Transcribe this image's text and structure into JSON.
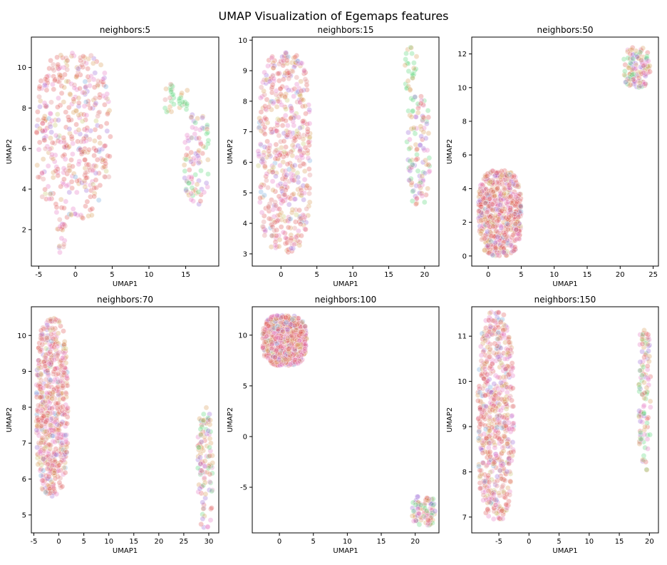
{
  "figure": {
    "title": "UMAP Visualization of Egemaps features"
  },
  "palette": [
    "#e05a5a",
    "#d9a05b",
    "#e67ac3",
    "#e08a8a",
    "#9b6ad6",
    "#5ad67a",
    "#6fa8dc",
    "#c8c86e"
  ],
  "chart_data": [
    {
      "type": "scatter",
      "title": "neighbors:5",
      "xlabel": "UMAP1",
      "ylabel": "UMAP2",
      "xlim": [
        -6,
        19.5
      ],
      "ylim": [
        0.2,
        11.5
      ],
      "xticks": [
        -5,
        0,
        5,
        10,
        15
      ],
      "yticks": [
        2,
        4,
        6,
        8,
        10
      ],
      "clusters": [
        {
          "x": [
            -5.3,
            4.8
          ],
          "y": [
            2.5,
            10.8
          ],
          "n": 420,
          "mix": "main"
        },
        {
          "x": [
            -2.5,
            -1.3
          ],
          "y": [
            0.7,
            2.6
          ],
          "n": 20,
          "mix": "main"
        },
        {
          "x": [
            11.8,
            15.6
          ],
          "y": [
            7.6,
            9.2
          ],
          "n": 35,
          "mix": "greenish"
        },
        {
          "x": [
            14.8,
            18.2
          ],
          "y": [
            3.2,
            7.8
          ],
          "n": 90,
          "mix": "edge"
        }
      ]
    },
    {
      "type": "scatter",
      "title": "neighbors:15",
      "xlabel": "UMAP1",
      "ylabel": "UMAP2",
      "xlim": [
        -4,
        22
      ],
      "ylim": [
        2.6,
        10.1
      ],
      "xticks": [
        0,
        5,
        10,
        15,
        20
      ],
      "yticks": [
        3,
        4,
        5,
        6,
        7,
        8,
        9,
        10
      ],
      "clusters": [
        {
          "x": [
            -3.2,
            4.2
          ],
          "y": [
            3.0,
            9.6
          ],
          "n": 520,
          "mix": "main"
        },
        {
          "x": [
            17.2,
            19.0
          ],
          "y": [
            8.0,
            9.8
          ],
          "n": 30,
          "mix": "green"
        },
        {
          "x": [
            17.5,
            20.8
          ],
          "y": [
            4.6,
            8.2
          ],
          "n": 110,
          "mix": "edge"
        }
      ]
    },
    {
      "type": "scatter",
      "title": "neighbors:50",
      "xlabel": "UMAP1",
      "ylabel": "UMAP2",
      "xlim": [
        -2.5,
        25.8
      ],
      "ylim": [
        -0.6,
        13.0
      ],
      "xticks": [
        0,
        5,
        10,
        15,
        20,
        25
      ],
      "yticks": [
        0,
        2,
        4,
        6,
        8,
        10,
        12
      ],
      "clusters": [
        {
          "x": [
            -1.5,
            5.0
          ],
          "y": [
            0.0,
            5.1
          ],
          "n": 650,
          "mix": "main"
        },
        {
          "x": [
            20.5,
            24.6
          ],
          "y": [
            10.0,
            12.4
          ],
          "n": 120,
          "mix": "edge"
        }
      ]
    },
    {
      "type": "scatter",
      "title": "neighbors:70",
      "xlabel": "UMAP1",
      "ylabel": "UMAP2",
      "xlim": [
        -5.5,
        32
      ],
      "ylim": [
        4.5,
        10.8
      ],
      "xticks": [
        -5,
        0,
        5,
        10,
        15,
        20,
        25,
        30
      ],
      "yticks": [
        5,
        6,
        7,
        8,
        9,
        10
      ],
      "clusters": [
        {
          "x": [
            -4.5,
            1.8
          ],
          "y": [
            5.5,
            10.5
          ],
          "n": 620,
          "mix": "main"
        },
        {
          "x": [
            27.8,
            30.8
          ],
          "y": [
            4.6,
            8.0
          ],
          "n": 110,
          "mix": "edge"
        }
      ]
    },
    {
      "type": "scatter",
      "title": "neighbors:100",
      "xlabel": "UMAP1",
      "ylabel": "UMAP2",
      "xlim": [
        -4,
        23.5
      ],
      "ylim": [
        -9.5,
        12.8
      ],
      "xticks": [
        0,
        5,
        10,
        15,
        20
      ],
      "yticks": [
        -5,
        0,
        5,
        10
      ],
      "clusters": [
        {
          "x": [
            -2.5,
            4.0
          ],
          "y": [
            7.0,
            12.0
          ],
          "n": 700,
          "mix": "main"
        },
        {
          "x": [
            19.5,
            23.0
          ],
          "y": [
            -8.8,
            -5.8
          ],
          "n": 90,
          "mix": "edge"
        }
      ]
    },
    {
      "type": "scatter",
      "title": "neighbors:150",
      "xlabel": "UMAP1",
      "ylabel": "UMAP2",
      "xlim": [
        -9.5,
        21.5
      ],
      "ylim": [
        6.65,
        11.65
      ],
      "xticks": [
        -5,
        0,
        5,
        10,
        15,
        20
      ],
      "yticks": [
        7,
        8,
        9,
        10,
        11
      ],
      "clusters": [
        {
          "x": [
            -8.5,
            -2.5
          ],
          "y": [
            6.9,
            11.55
          ],
          "n": 620,
          "mix": "main"
        },
        {
          "x": [
            18.2,
            20.2
          ],
          "y": [
            8.0,
            11.3
          ],
          "n": 110,
          "mix": "edge"
        }
      ]
    }
  ]
}
